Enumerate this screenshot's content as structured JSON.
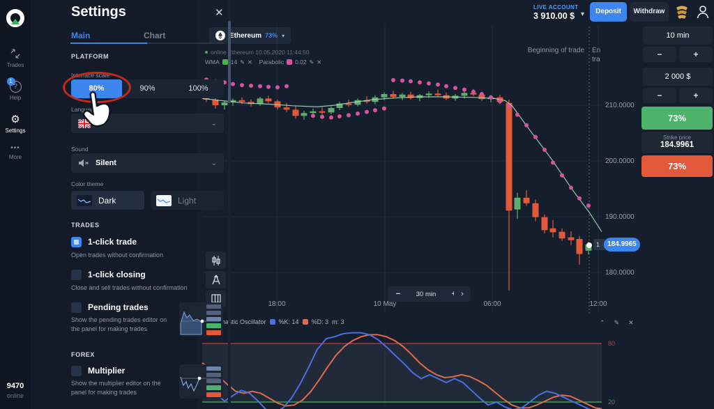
{
  "colors": {
    "accent": "#3d86f0",
    "candle_up": "#5fae6e",
    "candle_down": "#e2593a",
    "sar": "#d6549e",
    "wma": "#a5d6b8",
    "stoch_k": "#4a6fe3",
    "stoch_d": "#dd6b4d",
    "level_80": "#b94038",
    "level_20": "#3f9e55",
    "grid": "rgba(255,255,255,0.05)"
  },
  "sidebar": {
    "items": [
      {
        "label": "Trades"
      },
      {
        "label": "Help",
        "badge": "1"
      },
      {
        "label": "Settings",
        "active": true
      },
      {
        "label": "More"
      }
    ],
    "user_id": "9470",
    "status": "online"
  },
  "settings": {
    "title": "Settings",
    "close_icon": "✕",
    "tabs": [
      {
        "label": "Main",
        "active": true
      },
      {
        "label": "Chart"
      }
    ],
    "platform": {
      "heading": "PLATFORM",
      "interface_scale": {
        "label": "Interface scale",
        "options": [
          "80%",
          "90%",
          "100%"
        ],
        "selected": "80%"
      },
      "language": {
        "label": "Language",
        "flag": "uk-flag"
      },
      "sound": {
        "label": "Sound",
        "value": "Silent"
      },
      "color_theme": {
        "label": "Color theme",
        "options": [
          "Dark",
          "Light"
        ],
        "selected": "Dark"
      }
    },
    "trades": {
      "heading": "TRADES",
      "rows": [
        {
          "label": "1-click trade",
          "desc": "Open trades without confirmation",
          "checked": true
        },
        {
          "label": "1-click closing",
          "desc": "Close and sell trades without confirmation",
          "checked": false
        },
        {
          "label": "Pending trades",
          "desc": "Show the pending trades editor on the panel for making trades",
          "checked": false
        }
      ]
    },
    "forex": {
      "heading": "FOREX",
      "rows": [
        {
          "label": "Multiplier",
          "desc": "Show the multiplier editor on the panel for making trades",
          "checked": false
        }
      ]
    }
  },
  "topbar": {
    "account_label": "LIVE ACCOUNT",
    "balance": "3 910.00 $",
    "chevron": "▾",
    "deposit": "Deposit",
    "withdraw": "Withdraw"
  },
  "asset": {
    "name": "Ethereum",
    "payout": "73%",
    "chevron": "▾",
    "status_line": "online Ethereum 10.05.2020 11:44:50"
  },
  "timeframe": {
    "minus": "−",
    "value": "30 min",
    "plus": "+",
    "next": "›"
  },
  "trade_markers": {
    "begin_label": "Beginning of trade",
    "end_label": "End of trade",
    "end_visible_lines": [
      "En",
      "tra"
    ],
    "marker_tag": "1"
  },
  "trade_panel": {
    "duration": "10 min",
    "amount": "2 000 $",
    "minus": "−",
    "plus": "+",
    "up_payout": "73%",
    "strike_label": "Strike price",
    "strike_value": "184.9961",
    "down_payout": "73%"
  },
  "chart_data": [
    {
      "type": "candlestick",
      "title": "Ethereum",
      "payout": "73%",
      "indicators": [
        {
          "name": "WMA",
          "value": "14",
          "color": "#4caf50"
        },
        {
          "name": "Parabolic",
          "value": "0.02",
          "color": "#d6549e"
        }
      ],
      "ylim": [
        176,
        216
      ],
      "price_ticks": [
        {
          "label": "210.0000",
          "value": 210
        },
        {
          "label": "200.0000",
          "value": 200
        },
        {
          "label": "190.0000",
          "value": 190
        },
        {
          "label": "180.0000",
          "value": 180
        }
      ],
      "time_ticks": [
        {
          "label": "18:00",
          "x": 397
        },
        {
          "label": "10 May",
          "x": 552
        },
        {
          "label": "06:00",
          "x": 706
        },
        {
          "label": "12:00",
          "x": 858
        }
      ],
      "current_price": "184.9965",
      "end_line_x": 845,
      "candles": [
        [
          296,
          211.9,
          212.8,
          210.6,
          211.0
        ],
        [
          309,
          211.0,
          211.6,
          209.4,
          210.0
        ],
        [
          322,
          210.0,
          210.8,
          209.2,
          210.5
        ],
        [
          334,
          210.5,
          211.2,
          209.9,
          210.9
        ],
        [
          347,
          210.9,
          211.4,
          210.2,
          210.6
        ],
        [
          360,
          210.6,
          211.0,
          209.8,
          210.2
        ],
        [
          373,
          210.2,
          211.5,
          209.9,
          211.2
        ],
        [
          385,
          211.2,
          211.7,
          210.4,
          210.7
        ],
        [
          398,
          210.7,
          211.0,
          209.2,
          209.6
        ],
        [
          411,
          209.6,
          210.4,
          208.8,
          209.2
        ],
        [
          424,
          209.2,
          209.8,
          207.6,
          208.1
        ],
        [
          436,
          208.1,
          209.0,
          207.4,
          208.6
        ],
        [
          449,
          208.6,
          209.4,
          208.0,
          208.9
        ],
        [
          462,
          208.9,
          209.6,
          208.3,
          208.7
        ],
        [
          475,
          208.7,
          209.8,
          208.4,
          209.5
        ],
        [
          487,
          209.5,
          210.6,
          209.1,
          210.3
        ],
        [
          500,
          210.3,
          211.0,
          209.7,
          210.1
        ],
        [
          513,
          210.1,
          211.2,
          209.8,
          210.9
        ],
        [
          526,
          210.9,
          211.6,
          210.3,
          210.6
        ],
        [
          538,
          210.6,
          211.8,
          210.2,
          211.4
        ],
        [
          551,
          211.4,
          212.3,
          210.9,
          212.0
        ],
        [
          564,
          212.0,
          212.6,
          211.2,
          211.5
        ],
        [
          577,
          211.5,
          212.2,
          210.9,
          211.9
        ],
        [
          589,
          211.9,
          212.4,
          211.0,
          211.3
        ],
        [
          602,
          211.3,
          212.0,
          210.7,
          211.8
        ],
        [
          615,
          211.8,
          212.5,
          211.3,
          212.1
        ],
        [
          628,
          212.1,
          212.8,
          211.5,
          211.8
        ],
        [
          640,
          211.8,
          212.3,
          210.9,
          211.2
        ],
        [
          653,
          211.2,
          212.0,
          210.8,
          211.7
        ],
        [
          666,
          211.7,
          212.6,
          211.2,
          212.2
        ],
        [
          679,
          212.2,
          212.9,
          211.6,
          211.9
        ],
        [
          691,
          211.9,
          212.4,
          210.8,
          211.1
        ],
        [
          704,
          211.1,
          211.8,
          210.5,
          211.4
        ],
        [
          717,
          211.4,
          211.9,
          210.2,
          210.6
        ],
        [
          730,
          210.4,
          211.0,
          176.8,
          191.1
        ],
        [
          742,
          191.3,
          194.3,
          189.6,
          193.4
        ],
        [
          755,
          193.4,
          194.8,
          191.9,
          192.4
        ],
        [
          768,
          192.4,
          193.1,
          189.2,
          189.9
        ],
        [
          781,
          189.9,
          190.4,
          187.0,
          187.6
        ],
        [
          793,
          187.9,
          189.4,
          186.3,
          187.2
        ],
        [
          806,
          187.3,
          187.9,
          185.6,
          186.1
        ],
        [
          819,
          186.3,
          187.4,
          184.9,
          185.8
        ],
        [
          831,
          186.0,
          186.5,
          181.4,
          183.3
        ],
        [
          844,
          183.9,
          185.5,
          183.2,
          185.0
        ]
      ],
      "wma": [
        [
          290,
          211.2
        ],
        [
          320,
          210.8
        ],
        [
          350,
          210.4
        ],
        [
          385,
          210.2
        ],
        [
          420,
          209.9
        ],
        [
          455,
          209.7
        ],
        [
          480,
          210.0
        ],
        [
          505,
          210.5
        ],
        [
          535,
          211.0
        ],
        [
          565,
          211.3
        ],
        [
          600,
          211.5
        ],
        [
          640,
          211.5
        ],
        [
          680,
          211.4
        ],
        [
          710,
          211.2
        ],
        [
          725,
          210.8
        ],
        [
          735,
          209.8
        ],
        [
          760,
          205.5
        ],
        [
          790,
          200.5
        ],
        [
          820,
          195.0
        ],
        [
          845,
          190.8
        ],
        [
          863,
          187.3
        ]
      ],
      "sar": [
        [
          296,
          214.6
        ],
        [
          309,
          214.3
        ],
        [
          322,
          214.1
        ],
        [
          334,
          213.8
        ],
        [
          347,
          213.6
        ],
        [
          360,
          213.5
        ],
        [
          373,
          213.4
        ],
        [
          385,
          213.3
        ],
        [
          398,
          213.2
        ],
        [
          411,
          213.4
        ],
        [
          449,
          208.1
        ],
        [
          462,
          207.9
        ],
        [
          475,
          207.8
        ],
        [
          487,
          208.0
        ],
        [
          500,
          208.2
        ],
        [
          513,
          208.5
        ],
        [
          526,
          208.8
        ],
        [
          538,
          209.1
        ],
        [
          551,
          209.4
        ],
        [
          564,
          214.5
        ],
        [
          577,
          214.4
        ],
        [
          589,
          214.3
        ],
        [
          602,
          214.1
        ],
        [
          615,
          213.9
        ],
        [
          628,
          213.7
        ],
        [
          640,
          213.4
        ],
        [
          653,
          213.1
        ],
        [
          666,
          212.8
        ],
        [
          679,
          212.4
        ],
        [
          691,
          212.0
        ],
        [
          704,
          211.4
        ],
        [
          717,
          210.7
        ],
        [
          730,
          209.8
        ],
        [
          742,
          208.3
        ],
        [
          755,
          206.4
        ],
        [
          768,
          204.3
        ],
        [
          781,
          202.0
        ],
        [
          793,
          199.7
        ],
        [
          806,
          197.4
        ],
        [
          819,
          195.2
        ],
        [
          831,
          193.3
        ],
        [
          844,
          192.0
        ]
      ]
    },
    {
      "type": "line",
      "title": "Stochastic Oscillator",
      "params": [
        {
          "label": "%K: 14",
          "color": "#4a6fe3"
        },
        {
          "label": "%D: 3",
          "color": "#dd6b4d"
        },
        {
          "label": "m: 3"
        }
      ],
      "levels": [
        {
          "label": "80",
          "value": 80
        },
        {
          "label": "20",
          "value": 20
        }
      ],
      "k": [
        [
          290,
          48
        ],
        [
          300,
          38
        ],
        [
          312,
          27
        ],
        [
          322,
          21
        ],
        [
          335,
          27
        ],
        [
          346,
          32
        ],
        [
          358,
          29
        ],
        [
          370,
          21
        ],
        [
          382,
          12
        ],
        [
          394,
          9
        ],
        [
          406,
          14
        ],
        [
          418,
          24
        ],
        [
          430,
          38
        ],
        [
          443,
          56
        ],
        [
          455,
          74
        ],
        [
          468,
          85
        ],
        [
          480,
          87
        ],
        [
          492,
          90
        ],
        [
          505,
          91
        ],
        [
          518,
          91
        ],
        [
          530,
          89
        ],
        [
          542,
          84
        ],
        [
          555,
          76
        ],
        [
          568,
          67
        ],
        [
          580,
          59
        ],
        [
          592,
          50
        ],
        [
          604,
          44
        ],
        [
          616,
          48
        ],
        [
          628,
          44
        ],
        [
          640,
          40
        ],
        [
          652,
          44
        ],
        [
          664,
          40
        ],
        [
          676,
          32
        ],
        [
          688,
          24
        ],
        [
          700,
          17
        ],
        [
          712,
          20
        ],
        [
          724,
          15
        ],
        [
          736,
          12
        ],
        [
          748,
          14
        ],
        [
          760,
          20
        ],
        [
          772,
          27
        ],
        [
          784,
          31
        ],
        [
          796,
          29
        ],
        [
          808,
          25
        ],
        [
          820,
          21
        ],
        [
          832,
          17
        ],
        [
          844,
          13
        ],
        [
          856,
          10
        ],
        [
          863,
          9
        ]
      ],
      "d": [
        [
          290,
          60
        ],
        [
          302,
          54
        ],
        [
          314,
          46
        ],
        [
          326,
          38
        ],
        [
          338,
          31
        ],
        [
          350,
          29
        ],
        [
          362,
          31
        ],
        [
          374,
          29
        ],
        [
          386,
          24
        ],
        [
          398,
          19
        ],
        [
          410,
          16
        ],
        [
          422,
          17
        ],
        [
          434,
          22
        ],
        [
          446,
          31
        ],
        [
          458,
          43
        ],
        [
          470,
          56
        ],
        [
          482,
          68
        ],
        [
          494,
          77
        ],
        [
          506,
          83
        ],
        [
          518,
          87
        ],
        [
          530,
          89
        ],
        [
          542,
          89
        ],
        [
          554,
          87
        ],
        [
          566,
          83
        ],
        [
          578,
          77
        ],
        [
          590,
          69
        ],
        [
          602,
          60
        ],
        [
          614,
          53
        ],
        [
          626,
          48
        ],
        [
          638,
          45
        ],
        [
          650,
          46
        ],
        [
          662,
          48
        ],
        [
          674,
          46
        ],
        [
          686,
          42
        ],
        [
          698,
          37
        ],
        [
          710,
          30
        ],
        [
          722,
          23
        ],
        [
          734,
          17
        ],
        [
          746,
          14
        ],
        [
          758,
          14
        ],
        [
          770,
          17
        ],
        [
          782,
          21
        ],
        [
          794,
          25
        ],
        [
          806,
          27
        ],
        [
          818,
          26
        ],
        [
          830,
          22
        ],
        [
          842,
          18
        ],
        [
          854,
          14
        ],
        [
          863,
          13
        ]
      ]
    }
  ]
}
